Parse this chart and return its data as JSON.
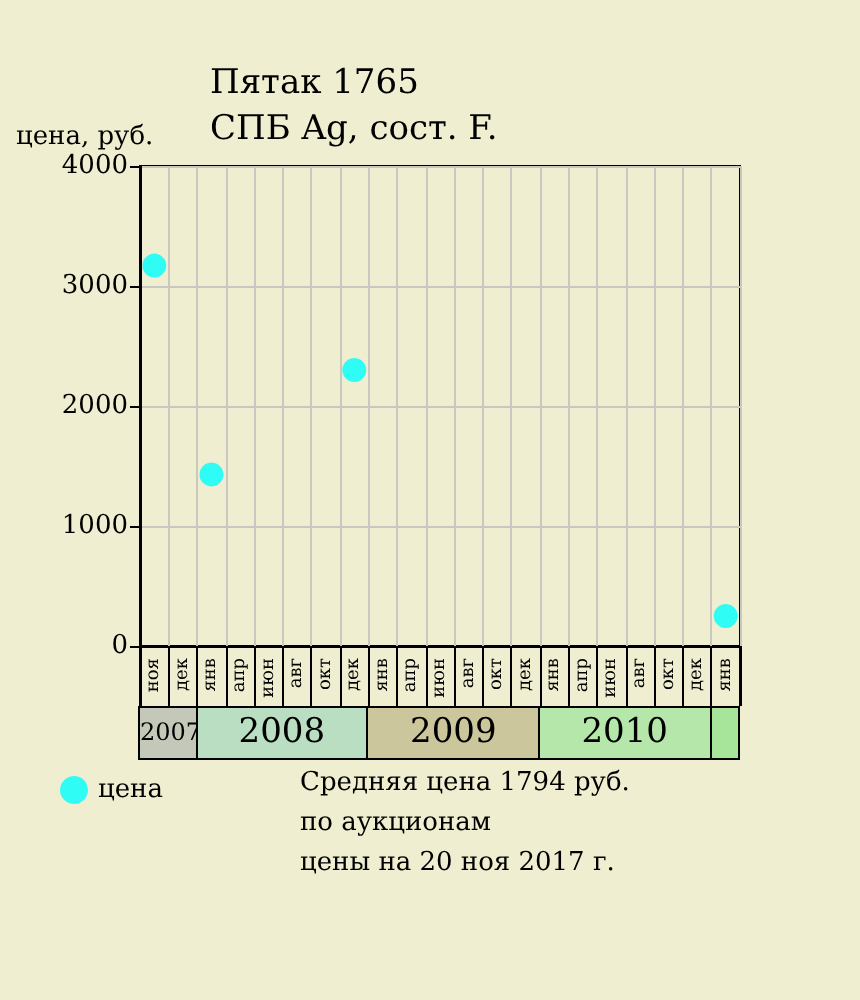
{
  "chart_data": {
    "type": "scatter",
    "title": "Пятак 1765",
    "subtitle": "СПБ Ag, сост. F.",
    "ylabel": "цена, руб.",
    "categories": [
      "ноя",
      "дек",
      "янв",
      "апр",
      "июн",
      "авг",
      "окт",
      "дек",
      "янв",
      "апр",
      "июн",
      "авг",
      "окт",
      "дек",
      "янв",
      "апр",
      "июн",
      "авг",
      "окт",
      "дек",
      "янв"
    ],
    "series": [
      {
        "name": "цена",
        "color": "#00ffff",
        "values": [
          3170,
          null,
          1430,
          null,
          null,
          null,
          null,
          2300,
          null,
          null,
          null,
          null,
          null,
          null,
          null,
          null,
          null,
          null,
          null,
          null,
          250
        ]
      }
    ],
    "ylim": [
      0,
      4000
    ],
    "yticks": [
      0,
      1000,
      2000,
      3000,
      4000
    ],
    "grid": true,
    "legend": "bottom left",
    "marker": "circle",
    "annotations": [
      "2007",
      "2008",
      "2009",
      "2010",
      "Средняя цена 1794 руб.",
      "по аукционам",
      "цены на 20 ноя 2017 г."
    ]
  }
}
